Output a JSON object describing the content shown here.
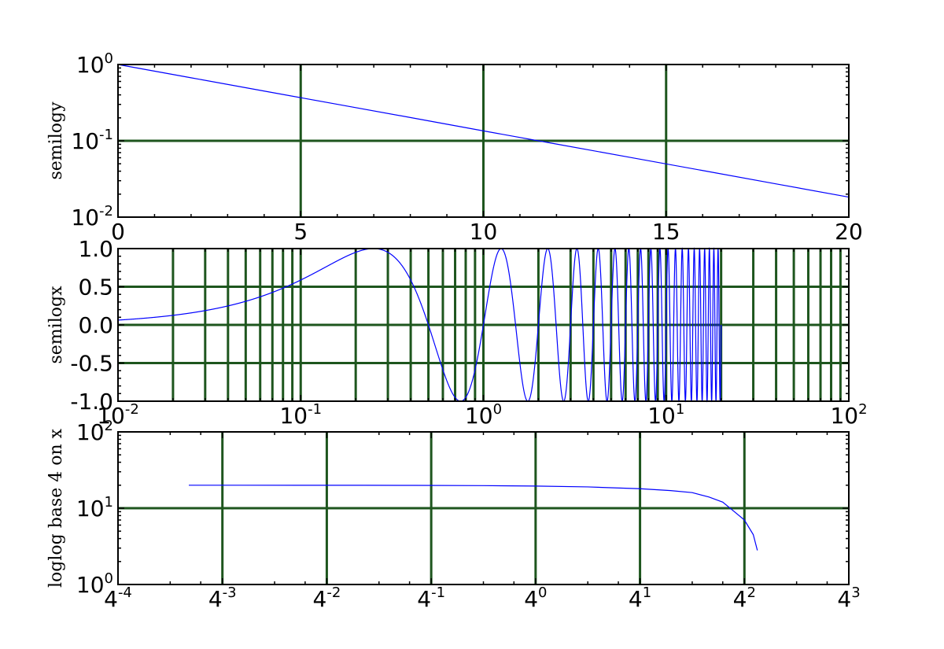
{
  "chart_data": [
    {
      "type": "line",
      "scale": {
        "x": "linear",
        "y": "log",
        "y_base": 10
      },
      "title": "",
      "xlabel": "",
      "ylabel": "semilogy",
      "xlim": [
        0,
        20
      ],
      "ylim": [
        0.01,
        1
      ],
      "grid": true,
      "x_ticks": [
        {
          "v": 0,
          "base": "0",
          "exp": ""
        },
        {
          "v": 5,
          "base": "5",
          "exp": ""
        },
        {
          "v": 10,
          "base": "10",
          "exp": ""
        },
        {
          "v": 15,
          "base": "15",
          "exp": ""
        },
        {
          "v": 20,
          "base": "20",
          "exp": ""
        }
      ],
      "y_ticks": [
        {
          "v": 1,
          "base": "10",
          "exp": "0"
        },
        {
          "v": 0.1,
          "base": "10",
          "exp": "-1"
        },
        {
          "v": 0.01,
          "base": "10",
          "exp": "-2"
        }
      ],
      "series": [
        {
          "x": [
            0,
            2,
            4,
            6,
            8,
            10,
            12,
            14,
            16,
            18,
            20
          ],
          "y": [
            1.0,
            0.67,
            0.449,
            0.301,
            0.202,
            0.135,
            0.0907,
            0.0608,
            0.0408,
            0.0273,
            0.0183
          ]
        }
      ]
    },
    {
      "type": "line",
      "scale": {
        "x": "log",
        "x_base": 10,
        "y": "linear"
      },
      "title": "",
      "xlabel": "",
      "ylabel": "semilogx",
      "xlim": [
        0.01,
        100
      ],
      "ylim": [
        -1.0,
        1.0
      ],
      "grid": true,
      "x_ticks": [
        {
          "v": 0.01,
          "base": "10",
          "exp": "-2"
        },
        {
          "v": 0.1,
          "base": "10",
          "exp": "-1"
        },
        {
          "v": 1,
          "base": "10",
          "exp": "0"
        },
        {
          "v": 10,
          "base": "10",
          "exp": "1"
        },
        {
          "v": 100,
          "base": "10",
          "exp": "2"
        }
      ],
      "y_ticks": [
        {
          "v": 1.0,
          "base": "1.0",
          "exp": ""
        },
        {
          "v": 0.5,
          "base": "0.5",
          "exp": ""
        },
        {
          "v": 0.0,
          "base": "0.0",
          "exp": ""
        },
        {
          "v": -0.5,
          "base": "-0.5",
          "exp": ""
        },
        {
          "v": -1.0,
          "base": "-1.0",
          "exp": ""
        }
      ],
      "series": [
        {
          "function": "sin(2*pi*x)",
          "x_range": [
            0.01,
            20
          ],
          "y_samples": [
            {
              "x": 0.01,
              "y": 0.063
            },
            {
              "x": 0.25,
              "y": 1.0
            },
            {
              "x": 0.75,
              "y": -1.0
            },
            {
              "x": 1.25,
              "y": 1.0
            },
            {
              "x": 20,
              "y": 0.0
            }
          ]
        }
      ]
    },
    {
      "type": "line",
      "scale": {
        "x": "log",
        "x_base": 4,
        "y": "log",
        "y_base": 10
      },
      "title": "",
      "xlabel": "",
      "ylabel": "loglog base 4 on x",
      "xlim": [
        0.00390625,
        64
      ],
      "ylim": [
        1,
        100
      ],
      "grid": true,
      "x_ticks": [
        {
          "v": 0.00390625,
          "base": "4",
          "exp": "-4"
        },
        {
          "v": 0.015625,
          "base": "4",
          "exp": "-3"
        },
        {
          "v": 0.0625,
          "base": "4",
          "exp": "-2"
        },
        {
          "v": 0.25,
          "base": "4",
          "exp": "-1"
        },
        {
          "v": 1,
          "base": "4",
          "exp": "0"
        },
        {
          "v": 4,
          "base": "4",
          "exp": "1"
        },
        {
          "v": 16,
          "base": "4",
          "exp": "2"
        },
        {
          "v": 64,
          "base": "4",
          "exp": "3"
        }
      ],
      "y_ticks": [
        {
          "v": 100,
          "base": "10",
          "exp": "2"
        },
        {
          "v": 10,
          "base": "10",
          "exp": "1"
        },
        {
          "v": 1,
          "base": "10",
          "exp": "0"
        }
      ],
      "series": [
        {
          "x": [
            0.01,
            0.02,
            0.05,
            0.1,
            0.2,
            0.5,
            1,
            2,
            4,
            6,
            8,
            10,
            12,
            14,
            16,
            18,
            19
          ],
          "y": [
            20.0,
            19.99,
            19.97,
            19.95,
            19.9,
            19.75,
            19.5,
            19.0,
            18.0,
            17.0,
            16.0,
            14.0,
            12.0,
            9.0,
            7.0,
            4.5,
            2.8
          ]
        }
      ]
    }
  ]
}
